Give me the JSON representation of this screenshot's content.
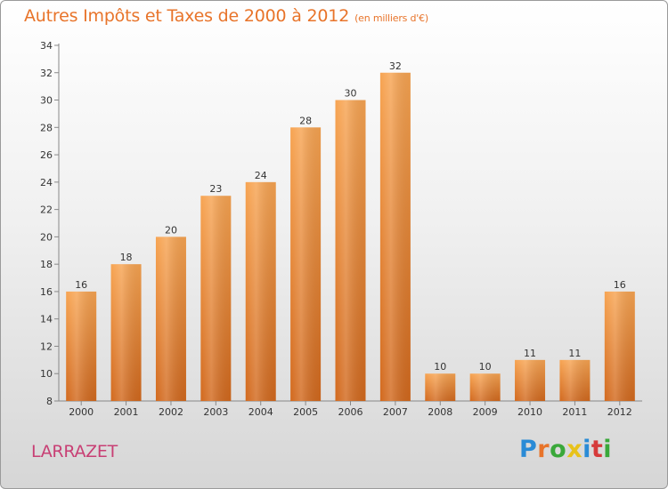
{
  "title": "Autres Impôts et Taxes de 2000 à 2012",
  "unit": "(en milliers d'€)",
  "commune": "LARRAZET",
  "logo": {
    "letters": [
      "P",
      "r",
      "o",
      "x",
      "i",
      "t",
      "i"
    ],
    "colors": [
      "#2a8bd6",
      "#e8742a",
      "#3aa83a",
      "#e8c21a",
      "#2a8bd6",
      "#d63a3a",
      "#3aa83a"
    ]
  },
  "colors": {
    "bar_top": "#f7a452",
    "bar_bottom": "#d2691e",
    "title": "#e8742a",
    "commune": "#c83f74"
  },
  "chart_data": {
    "type": "bar",
    "categories": [
      "2000",
      "2001",
      "2002",
      "2003",
      "2004",
      "2005",
      "2006",
      "2007",
      "2008",
      "2009",
      "2010",
      "2011",
      "2012"
    ],
    "values": [
      16,
      18,
      20,
      23,
      24,
      28,
      30,
      32,
      10,
      10,
      11,
      11,
      16
    ],
    "ylim": [
      8,
      34
    ],
    "yticks": [
      8,
      10,
      12,
      14,
      16,
      18,
      20,
      22,
      24,
      26,
      28,
      30,
      32,
      34
    ],
    "grid": false,
    "legend": "none"
  }
}
